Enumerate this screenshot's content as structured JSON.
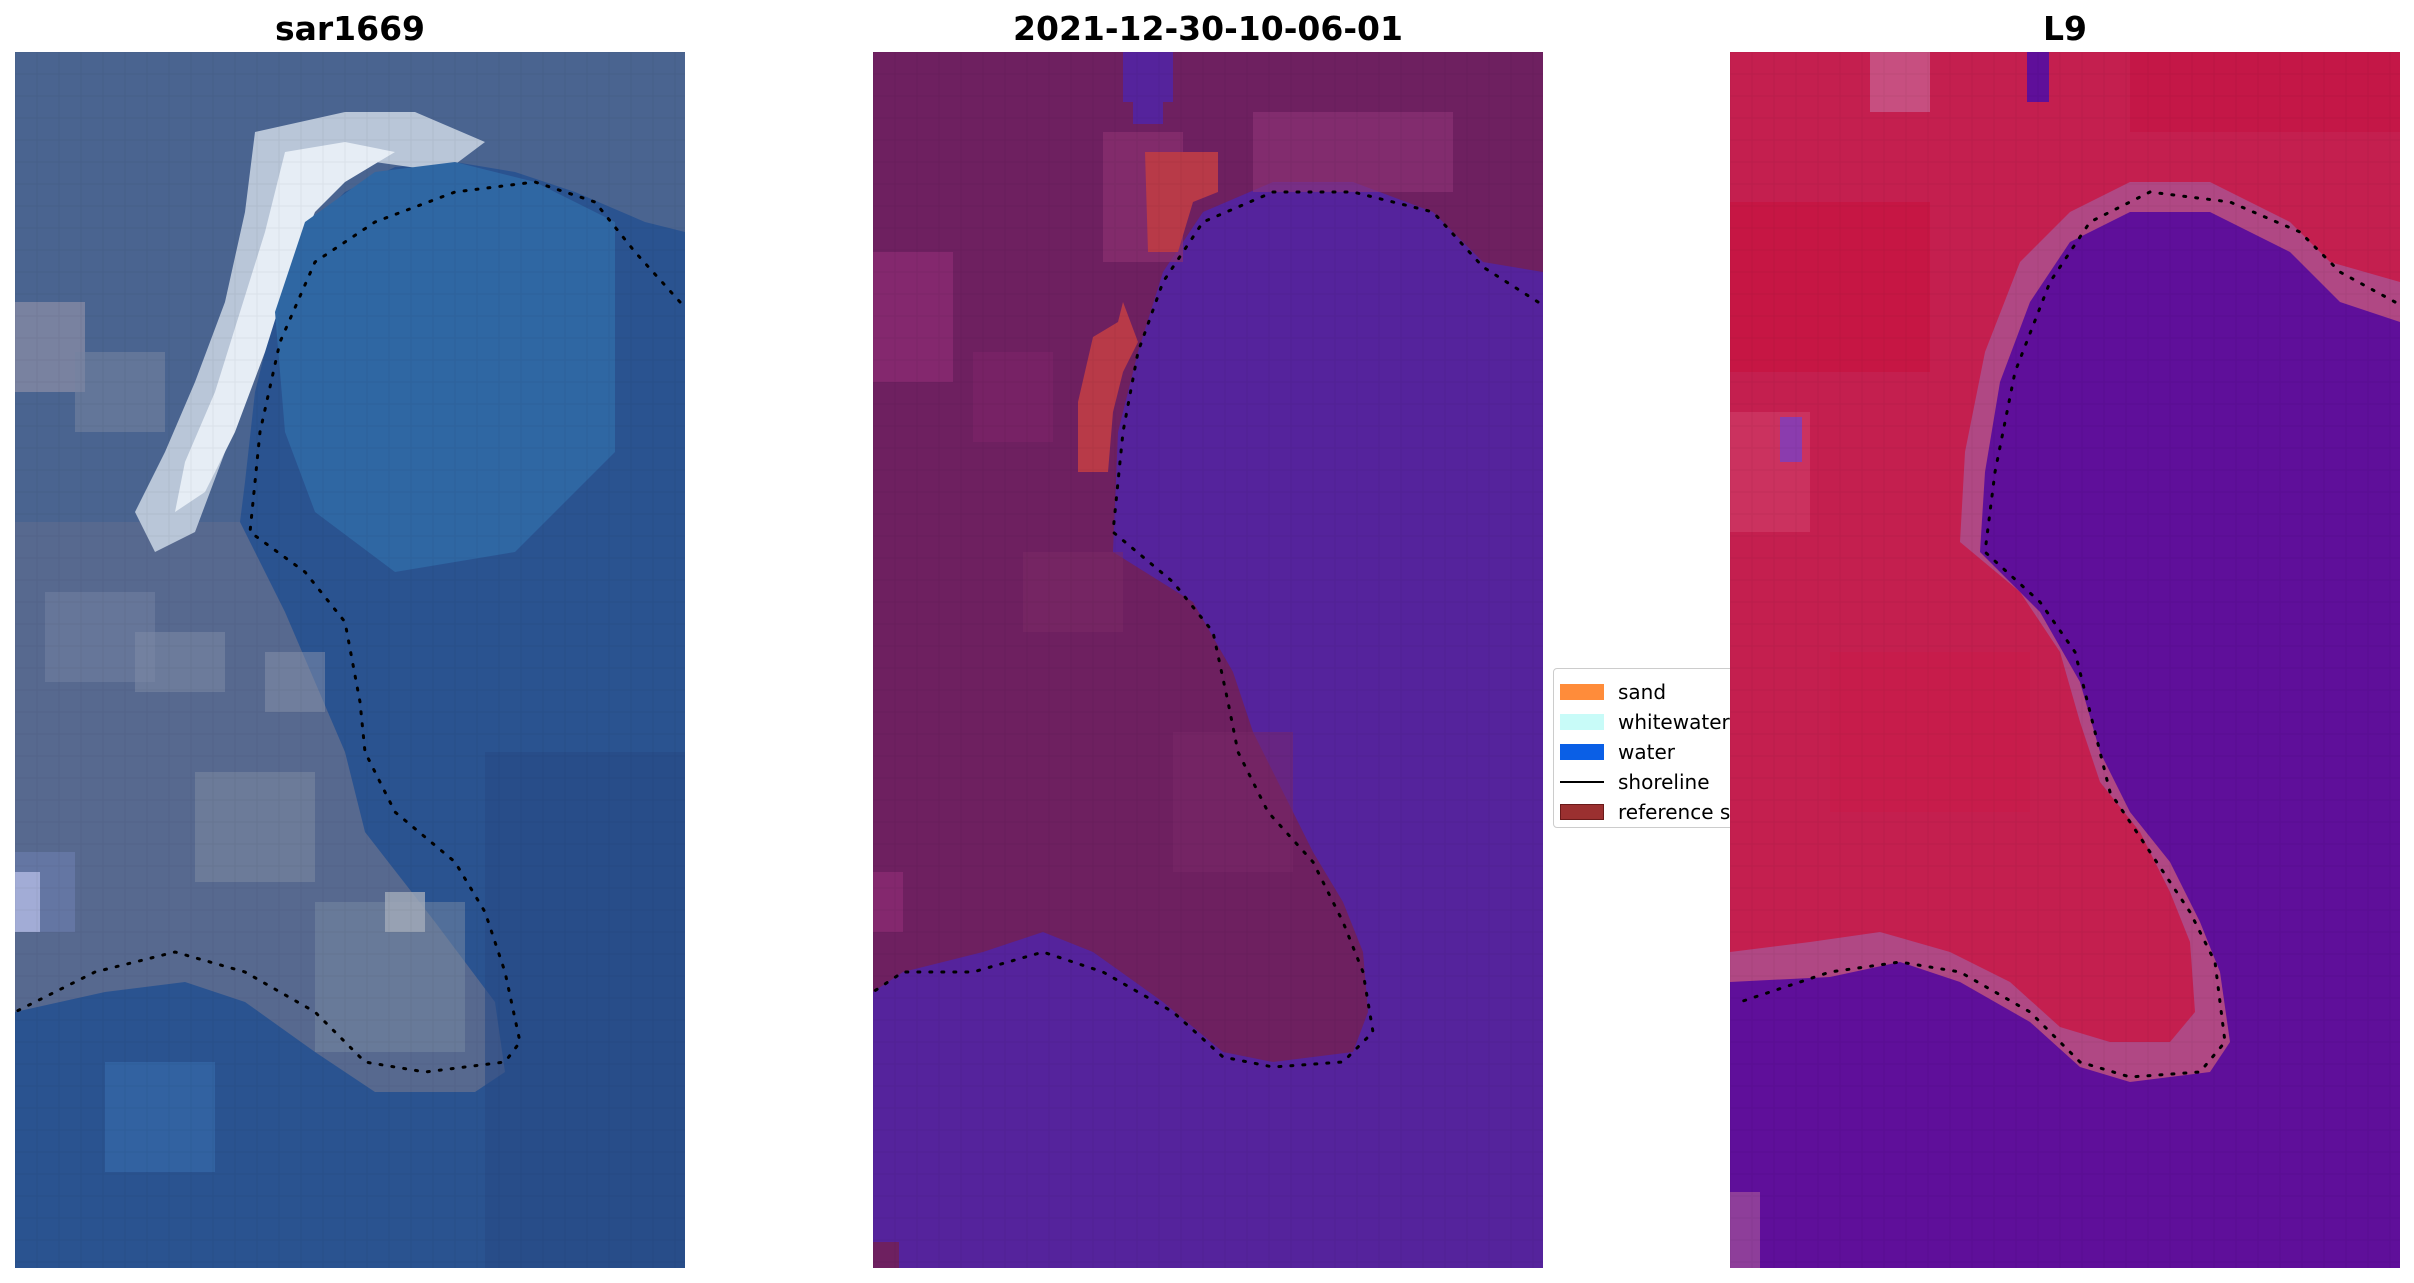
{
  "panels": [
    {
      "title": "sar1669"
    },
    {
      "title": "2021-12-30-10-06-01"
    },
    {
      "title": "L9"
    }
  ],
  "legend": {
    "items": [
      {
        "label": "sand",
        "color": "#ff8c3a"
      },
      {
        "label": "whitewater",
        "color": "#c8fbf8"
      },
      {
        "label": "water",
        "color": "#0a5fe6"
      },
      {
        "label": "shoreline",
        "color": "#000000"
      },
      {
        "label": "reference s",
        "color": "#9b3030"
      }
    ]
  },
  "colors": {
    "rgb_water": "#2a5390",
    "rgb_land": "#4f6690",
    "rgb_whitewater": "#e6edf5",
    "class_water": "#55239c",
    "class_land": "#6e2060",
    "class_reference": "#b83a48",
    "index_land": "#c41f4f",
    "index_water": "#5f0f9a"
  }
}
